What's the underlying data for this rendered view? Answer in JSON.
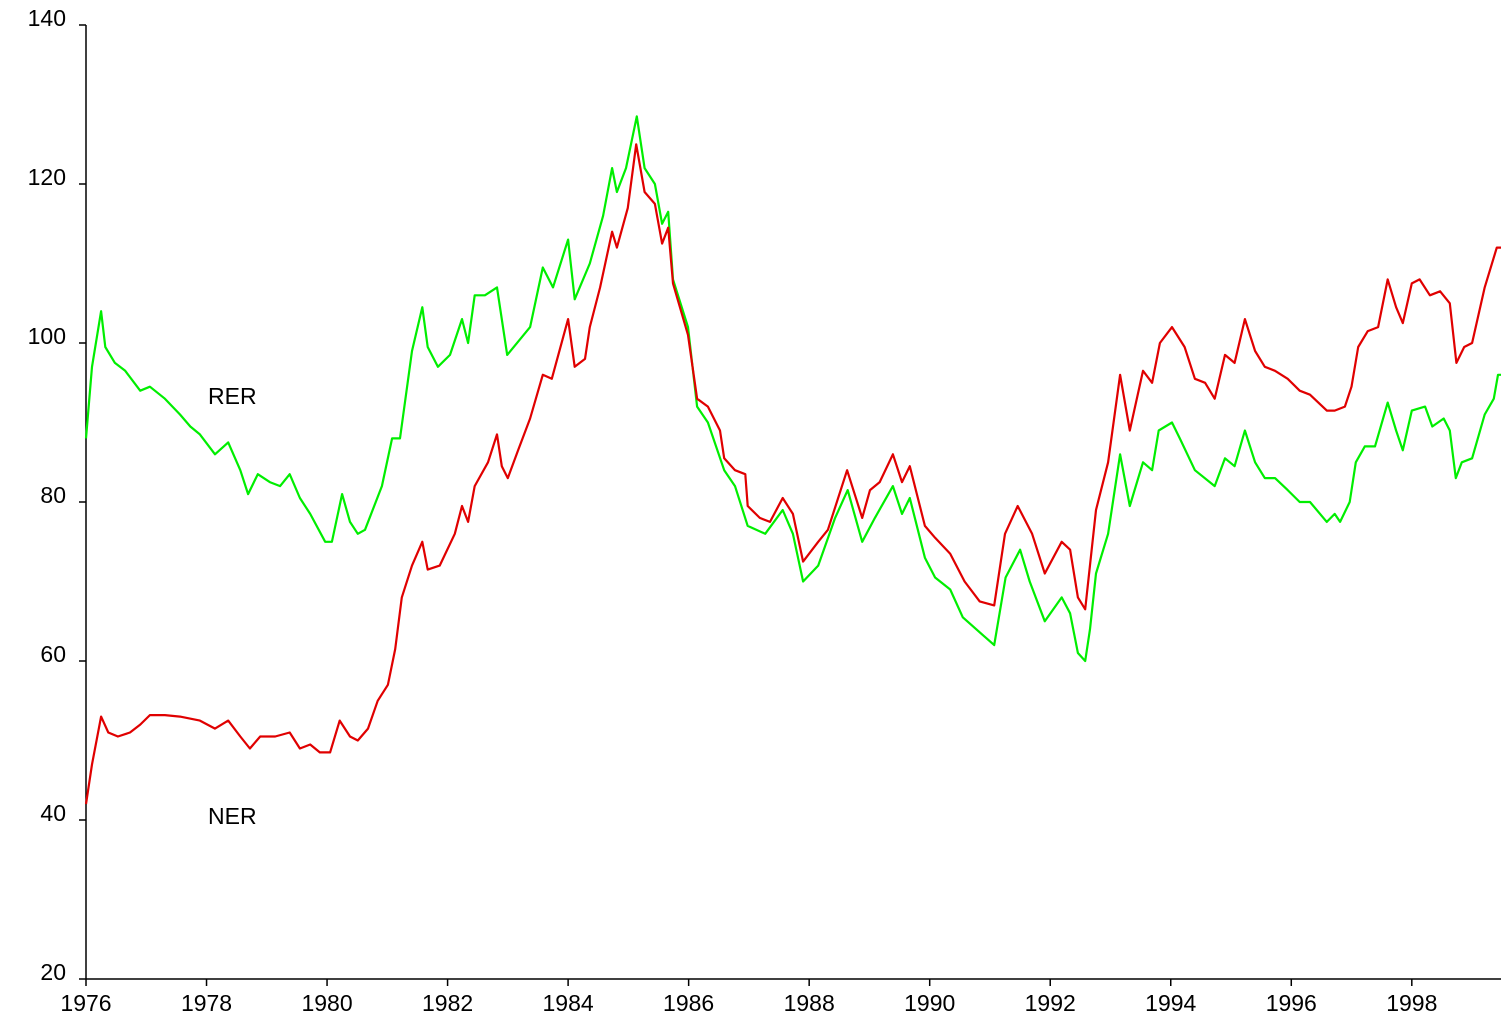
{
  "chart_data": {
    "type": "line",
    "xlim": [
      1976,
      1999.48
    ],
    "xticks": [
      1976,
      1978,
      1980,
      1982,
      1984,
      1986,
      1988,
      1990,
      1992,
      1994,
      1996,
      1998
    ],
    "ylim": [
      20,
      140
    ],
    "yticks": [
      20,
      40,
      60,
      80,
      100,
      120,
      140
    ],
    "series": [
      {
        "name": "RER",
        "color": "#00ee00",
        "x": [
          1976.0,
          1976.1,
          1976.25,
          1976.32,
          1976.48,
          1976.65,
          1976.9,
          1977.06,
          1977.31,
          1977.56,
          1977.73,
          1977.89,
          1978.14,
          1978.36,
          1978.56,
          1978.69,
          1978.85,
          1979.05,
          1979.22,
          1979.38,
          1979.55,
          1979.72,
          1979.97,
          1980.08,
          1980.25,
          1980.38,
          1980.51,
          1980.63,
          1980.91,
          1981.08,
          1981.21,
          1981.41,
          1981.58,
          1981.67,
          1981.84,
          1982.04,
          1982.24,
          1982.34,
          1982.45,
          1982.62,
          1982.82,
          1982.99,
          1983.37,
          1983.58,
          1983.75,
          1984.0,
          1984.11,
          1984.36,
          1984.58,
          1984.73,
          1984.81,
          1984.96,
          1985.14,
          1985.27,
          1985.44,
          1985.56,
          1985.66,
          1985.74,
          1985.99,
          1986.14,
          1986.32,
          1986.59,
          1986.77,
          1986.98,
          1987.27,
          1987.56,
          1987.73,
          1987.9,
          1988.15,
          1988.43,
          1988.64,
          1988.88,
          1989.09,
          1989.39,
          1989.54,
          1989.67,
          1989.92,
          1990.09,
          1990.34,
          1990.55,
          1990.92,
          1991.07,
          1991.26,
          1991.5,
          1991.66,
          1991.91,
          1992.19,
          1992.33,
          1992.46,
          1992.58,
          1992.66,
          1992.76,
          1992.96,
          1993.06,
          1993.16,
          1993.32,
          1993.54,
          1993.69,
          1993.8,
          1994.02,
          1994.15,
          1994.4,
          1994.73,
          1994.9,
          1995.06,
          1995.23,
          1995.4,
          1995.56,
          1995.73,
          1995.94,
          1996.14,
          1996.31,
          1996.59,
          1996.72,
          1996.81,
          1996.97,
          1997.07,
          1997.22,
          1997.39,
          1997.6,
          1997.74,
          1997.85,
          1998.0,
          1998.22,
          1998.34,
          1998.53,
          1998.63,
          1998.73,
          1998.83,
          1999.0,
          1999.21,
          1999.36,
          1999.43,
          1999.48
        ],
        "values": [
          88,
          97,
          104,
          99.5,
          97.5,
          96.5,
          94,
          94.5,
          93,
          91,
          89.5,
          88.5,
          86,
          87.5,
          84,
          81,
          83.5,
          82.5,
          82,
          83.5,
          80.5,
          78.5,
          75,
          75,
          81,
          77.5,
          76,
          76.5,
          82,
          88,
          88,
          99,
          104.5,
          99.5,
          97,
          98.5,
          103,
          100,
          106,
          106,
          107,
          98.5,
          102,
          109.5,
          107,
          113,
          105.5,
          110,
          116,
          122,
          119,
          122,
          128.5,
          122,
          120,
          115,
          116.5,
          108,
          102,
          92,
          90,
          84,
          82,
          77,
          76,
          79,
          76,
          70,
          72,
          78,
          81.5,
          75,
          78,
          82,
          78.5,
          80.5,
          73,
          70.5,
          69,
          65.5,
          63,
          62,
          70.5,
          74,
          70,
          65,
          68,
          66,
          61,
          60,
          64,
          71,
          76,
          81,
          86,
          79.5,
          85,
          84,
          89,
          90,
          88,
          84,
          82,
          85.5,
          84.5,
          89,
          85,
          83,
          83,
          81.5,
          80,
          80,
          77.5,
          78.5,
          77.5,
          80,
          85,
          87,
          87,
          92.5,
          89,
          86.5,
          91.5,
          92,
          89.5,
          90.5,
          89,
          83,
          85,
          85.5,
          91,
          93,
          96,
          96
        ]
      },
      {
        "name": "NER",
        "color": "#e00000",
        "x": [
          1976.0,
          1976.1,
          1976.25,
          1976.37,
          1976.53,
          1976.73,
          1976.9,
          1977.06,
          1977.31,
          1977.56,
          1977.89,
          1978.14,
          1978.36,
          1978.56,
          1978.72,
          1978.89,
          1979.14,
          1979.38,
          1979.55,
          1979.72,
          1979.88,
          1980.05,
          1980.21,
          1980.38,
          1980.51,
          1980.68,
          1980.84,
          1981.01,
          1981.13,
          1981.24,
          1981.41,
          1981.58,
          1981.67,
          1981.87,
          1982.12,
          1982.24,
          1982.34,
          1982.45,
          1982.67,
          1982.82,
          1982.9,
          1983.0,
          1983.17,
          1983.37,
          1983.58,
          1983.73,
          1984.0,
          1984.11,
          1984.28,
          1984.36,
          1984.53,
          1984.73,
          1984.81,
          1984.99,
          1985.13,
          1985.27,
          1985.44,
          1985.56,
          1985.66,
          1985.74,
          1985.99,
          1986.14,
          1986.32,
          1986.52,
          1986.59,
          1986.77,
          1986.94,
          1986.98,
          1987.18,
          1987.35,
          1987.56,
          1987.73,
          1987.9,
          1988.15,
          1988.31,
          1988.63,
          1988.88,
          1989.01,
          1989.17,
          1989.39,
          1989.54,
          1989.67,
          1989.92,
          1990.09,
          1990.34,
          1990.58,
          1990.83,
          1991.07,
          1991.25,
          1991.46,
          1991.7,
          1991.91,
          1992.19,
          1992.33,
          1992.46,
          1992.58,
          1992.76,
          1992.96,
          1993.16,
          1993.32,
          1993.54,
          1993.69,
          1993.82,
          1994.02,
          1994.23,
          1994.4,
          1994.57,
          1994.73,
          1994.9,
          1995.06,
          1995.23,
          1995.4,
          1995.56,
          1995.73,
          1995.94,
          1996.14,
          1996.31,
          1996.59,
          1996.72,
          1996.89,
          1997.0,
          1997.11,
          1997.27,
          1997.44,
          1997.6,
          1997.74,
          1997.85,
          1998.0,
          1998.13,
          1998.3,
          1998.47,
          1998.63,
          1998.74,
          1998.87,
          1999.0,
          1999.21,
          1999.41,
          1999.48
        ],
        "values": [
          42,
          47,
          53,
          51,
          50.5,
          51,
          52,
          53.2,
          53.2,
          53,
          52.5,
          51.5,
          52.5,
          50.5,
          49,
          50.5,
          50.5,
          51,
          49,
          49.5,
          48.5,
          48.5,
          52.5,
          50.5,
          50,
          51.5,
          55,
          57,
          61.5,
          68,
          72,
          75,
          71.5,
          72,
          76,
          79.5,
          77.5,
          82,
          85,
          88.5,
          84.5,
          83,
          86.5,
          90.5,
          96,
          95.5,
          103,
          97,
          98,
          102,
          107,
          114,
          112,
          117,
          125,
          119,
          117.5,
          112.5,
          114.5,
          107.5,
          101,
          93,
          92,
          89,
          85.5,
          84,
          83.5,
          79.5,
          78,
          77.5,
          80.5,
          78.5,
          72.5,
          75,
          76.5,
          84,
          78,
          81.5,
          82.5,
          86,
          82.5,
          84.5,
          77,
          75.5,
          73.5,
          70,
          67.5,
          67,
          76,
          79.5,
          76,
          71,
          75,
          74,
          68,
          66.5,
          79,
          85,
          96,
          89,
          96.5,
          95,
          100,
          102,
          99.5,
          95.5,
          95,
          93,
          98.5,
          97.5,
          103,
          99,
          97,
          96.5,
          95.5,
          94,
          93.5,
          91.5,
          91.5,
          92,
          94.5,
          99.5,
          101.5,
          102,
          108,
          104.5,
          102.5,
          107.5,
          108,
          106,
          106.5,
          105,
          97.5,
          99.5,
          100,
          107,
          112,
          112
        ]
      }
    ]
  }
}
